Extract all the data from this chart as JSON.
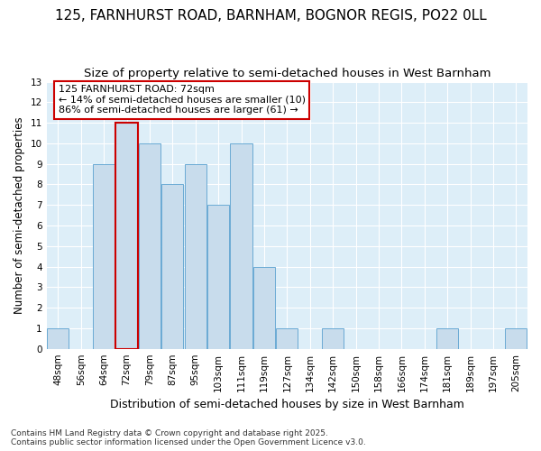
{
  "title": "125, FARNHURST ROAD, BARNHAM, BOGNOR REGIS, PO22 0LL",
  "subtitle": "Size of property relative to semi-detached houses in West Barnham",
  "xlabel": "Distribution of semi-detached houses by size in West Barnham",
  "ylabel": "Number of semi-detached properties",
  "categories": [
    "48sqm",
    "56sqm",
    "64sqm",
    "72sqm",
    "79sqm",
    "87sqm",
    "95sqm",
    "103sqm",
    "111sqm",
    "119sqm",
    "127sqm",
    "134sqm",
    "142sqm",
    "150sqm",
    "158sqm",
    "166sqm",
    "174sqm",
    "181sqm",
    "189sqm",
    "197sqm",
    "205sqm"
  ],
  "values": [
    1,
    0,
    9,
    11,
    10,
    8,
    9,
    7,
    10,
    4,
    1,
    0,
    1,
    0,
    0,
    0,
    0,
    1,
    0,
    0,
    1
  ],
  "bar_color": "#c8dcec",
  "bar_edge_color": "#6aaad4",
  "highlight_index": 3,
  "highlight_edge_color": "#cc0000",
  "annotation_text": "125 FARNHURST ROAD: 72sqm\n← 14% of semi-detached houses are smaller (10)\n86% of semi-detached houses are larger (61) →",
  "annotation_box_color": "#cc0000",
  "plot_bg_color": "#ddeef8",
  "fig_bg_color": "#ffffff",
  "grid_color": "#ffffff",
  "ylim": [
    0,
    13
  ],
  "yticks": [
    0,
    1,
    2,
    3,
    4,
    5,
    6,
    7,
    8,
    9,
    10,
    11,
    12,
    13
  ],
  "footer_text": "Contains HM Land Registry data © Crown copyright and database right 2025.\nContains public sector information licensed under the Open Government Licence v3.0.",
  "title_fontsize": 11,
  "subtitle_fontsize": 9.5,
  "xlabel_fontsize": 9,
  "ylabel_fontsize": 8.5,
  "tick_fontsize": 7.5,
  "footer_fontsize": 6.5,
  "annotation_fontsize": 8
}
